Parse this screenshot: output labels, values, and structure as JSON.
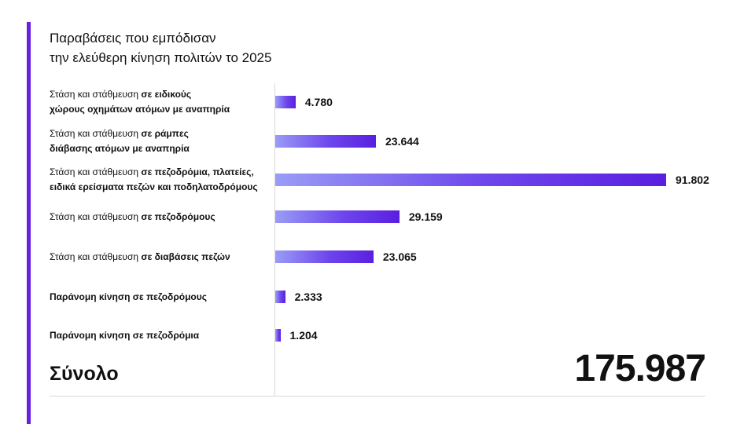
{
  "title": {
    "line1": "Παραβάσεις που εμπόδισαν",
    "line2": "την ελεύθερη κίνηση πολιτών το 2025"
  },
  "chart_data": {
    "type": "bar",
    "orientation": "horizontal",
    "categories": [
      "Στάση και στάθμευση σε ειδικούς χώρους οχημάτων ατόμων με αναπηρία",
      "Στάση και στάθμευση σε ράμπες διάβασης ατόμων με αναπηρία",
      "Στάση και στάθμευση σε πεζοδρόμια, πλατείες, ειδικά ερείσματα πεζών και ποδηλατοδρόμους",
      "Στάση και στάθμευση σε πεζοδρόμους",
      "Στάση και στάθμευση σε διαβάσεις πεζών",
      "Παράνομη κίνηση σε πεζοδρόμους",
      "Παράνομη κίνηση σε πεζοδρόμια"
    ],
    "values": [
      4780,
      23644,
      91802,
      29159,
      23065,
      2333,
      1204
    ],
    "value_labels": [
      "4.780",
      "23.644",
      "91.802",
      "29.159",
      "23.065",
      "2.333",
      "1.204"
    ],
    "category_parts": [
      [
        {
          "text": "Στάση και στάθμευση ",
          "bold": false
        },
        {
          "text": "σε ειδικούς",
          "bold": true
        },
        {
          "text": "\nχώρους οχημάτων ατόμων με αναπηρία",
          "bold": true
        }
      ],
      [
        {
          "text": "Στάση και στάθμευση ",
          "bold": false
        },
        {
          "text": "σε ράμπες",
          "bold": true
        },
        {
          "text": "\nδιάβασης ατόμων με αναπηρία",
          "bold": true
        }
      ],
      [
        {
          "text": "Στάση και στάθμευση ",
          "bold": false
        },
        {
          "text": "σε πεζοδρόμια, πλατείες,",
          "bold": true
        },
        {
          "text": "\nειδικά ερείσματα πεζών και ποδηλατοδρόμους",
          "bold": true
        }
      ],
      [
        {
          "text": "Στάση και στάθμευση ",
          "bold": false
        },
        {
          "text": "σε πεζοδρόμους",
          "bold": true
        }
      ],
      [
        {
          "text": "Στάση και στάθμευση ",
          "bold": false
        },
        {
          "text": "σε διαβάσεις πεζών",
          "bold": true
        }
      ],
      [
        {
          "text": "Παράνομη κίνηση σε πεζοδρόμους",
          "bold": true
        }
      ],
      [
        {
          "text": "Παράνομη κίνηση σε πεζοδρόμια",
          "bold": true
        }
      ]
    ],
    "bar_colors": [
      "#9a9cf6",
      "#5a1fe0"
    ],
    "grid": false
  },
  "total": {
    "label": "Σύνολο",
    "value": "175.987"
  },
  "colors": {
    "accent": "#6a1fe0"
  }
}
